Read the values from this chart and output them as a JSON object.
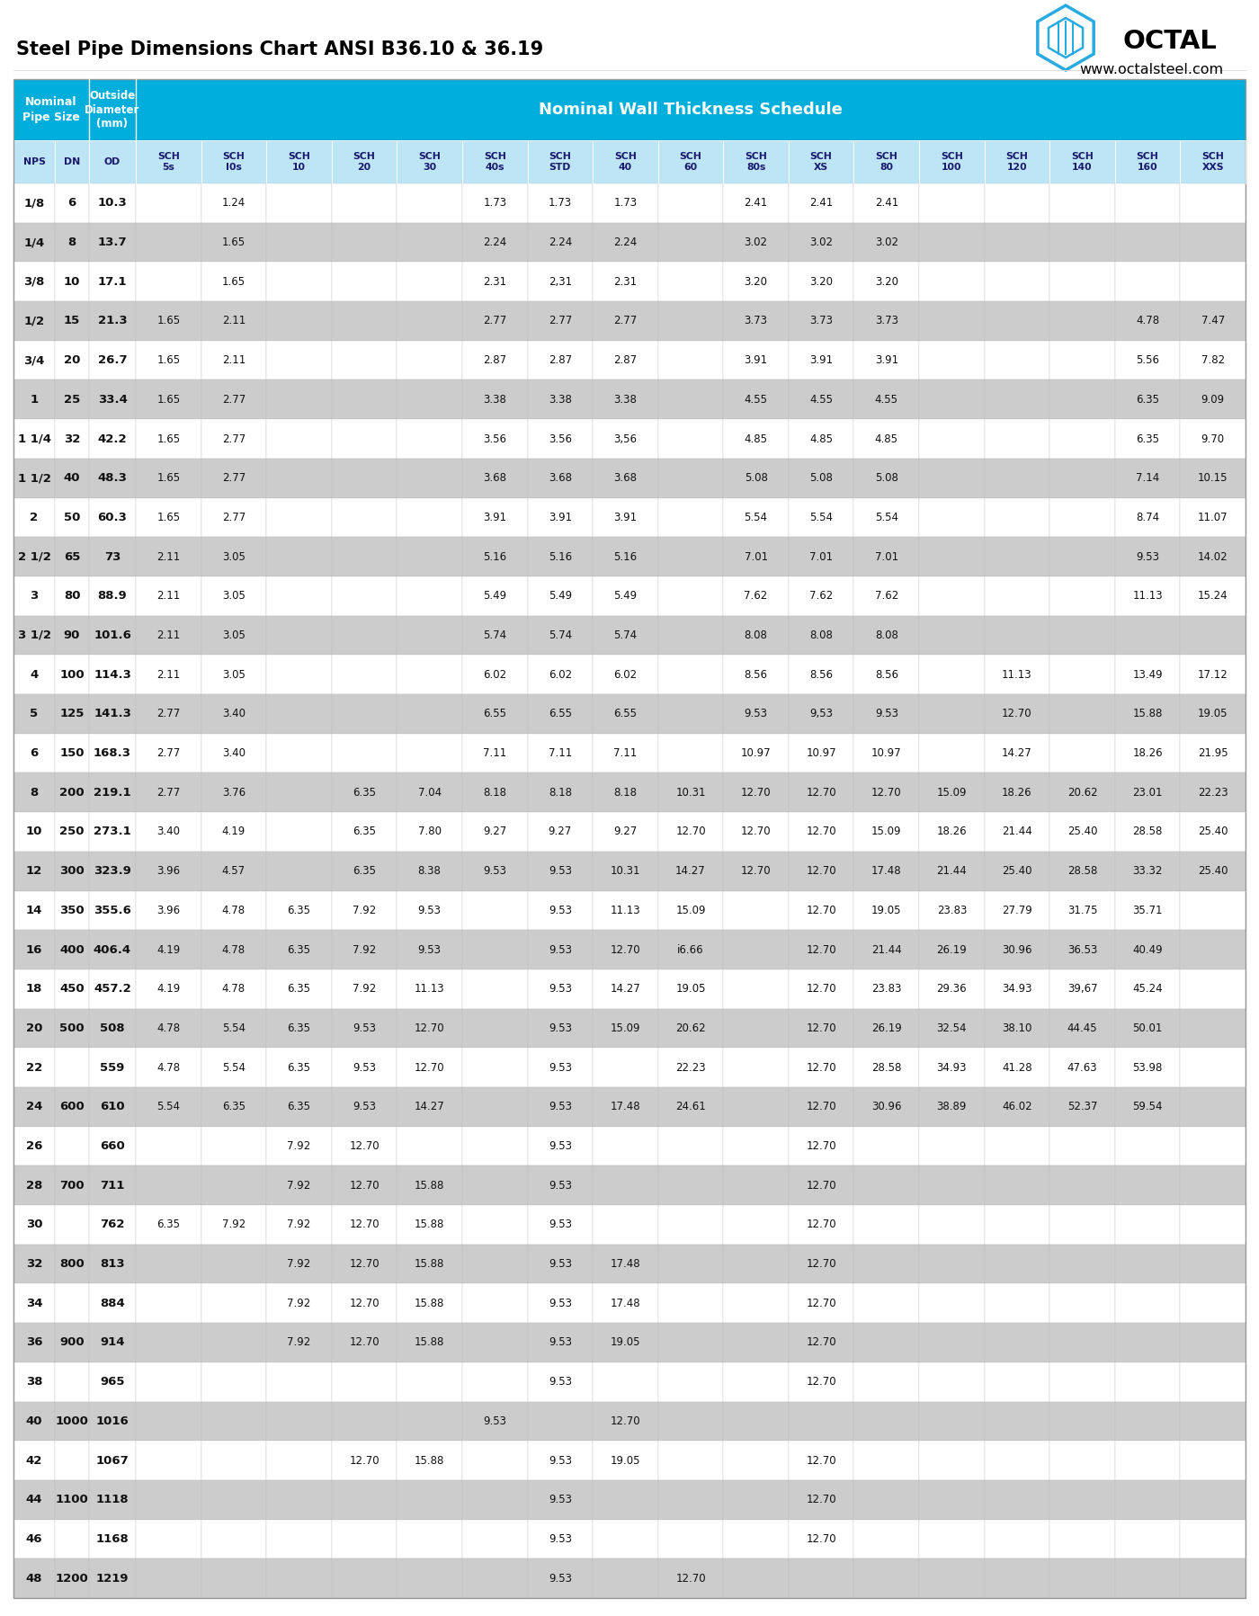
{
  "title": "Steel Pipe Dimensions Chart ANSI B36.10 & 36.19",
  "website": "www.octalsteel.com",
  "header_bg": "#00AEDB",
  "subheader_bg": "#BDE5F5",
  "row_even_bg": "#FFFFFF",
  "row_odd_bg": "#CCCCCC",
  "col_headers_line1": [
    "NPS",
    "DN",
    "OD",
    "SCH",
    "SCH",
    "SCH",
    "SCH",
    "SCH",
    "SCH",
    "SCH",
    "SCH",
    "SCH",
    "SCH",
    "SCH",
    "SCH",
    "SCH",
    "SCH",
    "SCH",
    "SCH",
    "SCH"
  ],
  "col_headers_line2": [
    "",
    "",
    "",
    "5s",
    "I0s",
    "10",
    "20",
    "30",
    "40s",
    "STD",
    "40",
    "60",
    "80s",
    "XS",
    "80",
    "100",
    "120",
    "140",
    "160",
    "XXS"
  ],
  "rows": [
    [
      "1/8",
      "6",
      "10.3",
      "",
      "1.24",
      "",
      "",
      "",
      "1.73",
      "1.73",
      "1.73",
      "",
      "2.41",
      "2.41",
      "2.41",
      "",
      "",
      "",
      "",
      ""
    ],
    [
      "1/4",
      "8",
      "13.7",
      "",
      "1.65",
      "",
      "",
      "",
      "2.24",
      "2.24",
      "2.24",
      "",
      "3.02",
      "3.02",
      "3.02",
      "",
      "",
      "",
      "",
      ""
    ],
    [
      "3/8",
      "10",
      "17.1",
      "",
      "1.65",
      "",
      "",
      "",
      "2.31",
      "2,31",
      "2.31",
      "",
      "3.20",
      "3.20",
      "3.20",
      "",
      "",
      "",
      "",
      ""
    ],
    [
      "1/2",
      "15",
      "21.3",
      "1.65",
      "2.11",
      "",
      "",
      "",
      "2.77",
      "2.77",
      "2.77",
      "",
      "3.73",
      "3.73",
      "3.73",
      "",
      "",
      "",
      "4.78",
      "7.47"
    ],
    [
      "3/4",
      "20",
      "26.7",
      "1.65",
      "2.11",
      "",
      "",
      "",
      "2.87",
      "2.87",
      "2.87",
      "",
      "3.91",
      "3.91",
      "3.91",
      "",
      "",
      "",
      "5.56",
      "7.82"
    ],
    [
      "1",
      "25",
      "33.4",
      "1.65",
      "2.77",
      "",
      "",
      "",
      "3.38",
      "3.38",
      "3.38",
      "",
      "4.55",
      "4.55",
      "4.55",
      "",
      "",
      "",
      "6.35",
      "9.09"
    ],
    [
      "1 1/4",
      "32",
      "42.2",
      "1.65",
      "2.77",
      "",
      "",
      "",
      "3.56",
      "3.56",
      "3,56",
      "",
      "4.85",
      "4.85",
      "4.85",
      "",
      "",
      "",
      "6.35",
      "9.70"
    ],
    [
      "1 1/2",
      "40",
      "48.3",
      "1.65",
      "2.77",
      "",
      "",
      "",
      "3.68",
      "3.68",
      "3.68",
      "",
      "5.08",
      "5.08",
      "5.08",
      "",
      "",
      "",
      "7.14",
      "10.15"
    ],
    [
      "2",
      "50",
      "60.3",
      "1.65",
      "2.77",
      "",
      "",
      "",
      "3.91",
      "3.91",
      "3.91",
      "",
      "5.54",
      "5.54",
      "5.54",
      "",
      "",
      "",
      "8.74",
      "11.07"
    ],
    [
      "2 1/2",
      "65",
      "73",
      "2.11",
      "3.05",
      "",
      "",
      "",
      "5.16",
      "5.16",
      "5.16",
      "",
      "7.01",
      "7.01",
      "7.01",
      "",
      "",
      "",
      "9.53",
      "14.02"
    ],
    [
      "3",
      "80",
      "88.9",
      "2.11",
      "3.05",
      "",
      "",
      "",
      "5.49",
      "5.49",
      "5.49",
      "",
      "7.62",
      "7.62",
      "7.62",
      "",
      "",
      "",
      "11.13",
      "15.24"
    ],
    [
      "3 1/2",
      "90",
      "101.6",
      "2.11",
      "3.05",
      "",
      "",
      "",
      "5.74",
      "5.74",
      "5.74",
      "",
      "8.08",
      "8.08",
      "8.08",
      "",
      "",
      "",
      "",
      ""
    ],
    [
      "4",
      "100",
      "114.3",
      "2.11",
      "3.05",
      "",
      "",
      "",
      "6.02",
      "6.02",
      "6.02",
      "",
      "8.56",
      "8.56",
      "8.56",
      "",
      "11.13",
      "",
      "13.49",
      "17.12"
    ],
    [
      "5",
      "125",
      "141.3",
      "2.77",
      "3.40",
      "",
      "",
      "",
      "6.55",
      "6.55",
      "6.55",
      "",
      "9.53",
      "9,53",
      "9.53",
      "",
      "12.70",
      "",
      "15.88",
      "19.05"
    ],
    [
      "6",
      "150",
      "168.3",
      "2.77",
      "3.40",
      "",
      "",
      "",
      "7.11",
      "7.11",
      "7.11",
      "",
      "10.97",
      "10.97",
      "10.97",
      "",
      "14.27",
      "",
      "18.26",
      "21.95"
    ],
    [
      "8",
      "200",
      "219.1",
      "2.77",
      "3.76",
      "",
      "6.35",
      "7.04",
      "8.18",
      "8.18",
      "8.18",
      "10.31",
      "12.70",
      "12.70",
      "12.70",
      "15.09",
      "18.26",
      "20.62",
      "23.01",
      "22.23"
    ],
    [
      "10",
      "250",
      "273.1",
      "3.40",
      "4.19",
      "",
      "6.35",
      "7.80",
      "9.27",
      "9.27",
      "9.27",
      "12.70",
      "12.70",
      "12.70",
      "15.09",
      "18.26",
      "21.44",
      "25.40",
      "28.58",
      "25.40"
    ],
    [
      "12",
      "300",
      "323.9",
      "3.96",
      "4.57",
      "",
      "6.35",
      "8.38",
      "9.53",
      "9.53",
      "10.31",
      "14.27",
      "12.70",
      "12.70",
      "17.48",
      "21.44",
      "25.40",
      "28.58",
      "33.32",
      "25.40"
    ],
    [
      "14",
      "350",
      "355.6",
      "3.96",
      "4.78",
      "6.35",
      "7.92",
      "9.53",
      "",
      "9.53",
      "11.13",
      "15.09",
      "",
      "12.70",
      "19.05",
      "23.83",
      "27.79",
      "31.75",
      "35.71",
      ""
    ],
    [
      "16",
      "400",
      "406.4",
      "4.19",
      "4.78",
      "6.35",
      "7.92",
      "9.53",
      "",
      "9.53",
      "12.70",
      "i6.66",
      "",
      "12.70",
      "21.44",
      "26.19",
      "30.96",
      "36.53",
      "40.49",
      ""
    ],
    [
      "18",
      "450",
      "457.2",
      "4.19",
      "4.78",
      "6.35",
      "7.92",
      "11.13",
      "",
      "9.53",
      "14.27",
      "19.05",
      "",
      "12.70",
      "23.83",
      "29.36",
      "34.93",
      "39,67",
      "45.24",
      ""
    ],
    [
      "20",
      "500",
      "508",
      "4.78",
      "5.54",
      "6.35",
      "9.53",
      "12.70",
      "",
      "9.53",
      "15.09",
      "20.62",
      "",
      "12.70",
      "26.19",
      "32.54",
      "38.10",
      "44.45",
      "50.01",
      ""
    ],
    [
      "22",
      "",
      "559",
      "4.78",
      "5.54",
      "6.35",
      "9.53",
      "12.70",
      "",
      "9.53",
      "",
      "22.23",
      "",
      "12.70",
      "28.58",
      "34.93",
      "41.28",
      "47.63",
      "53.98",
      ""
    ],
    [
      "24",
      "600",
      "610",
      "5.54",
      "6.35",
      "6.35",
      "9.53",
      "14.27",
      "",
      "9.53",
      "17.48",
      "24.61",
      "",
      "12.70",
      "30.96",
      "38.89",
      "46.02",
      "52.37",
      "59.54",
      ""
    ],
    [
      "26",
      "",
      "660",
      "",
      "",
      "7.92",
      "12.70",
      "",
      "",
      "9.53",
      "",
      "",
      "",
      "12.70",
      "",
      "",
      "",
      "",
      "",
      ""
    ],
    [
      "28",
      "700",
      "711",
      "",
      "",
      "7.92",
      "12.70",
      "15.88",
      "",
      "9.53",
      "",
      "",
      "",
      "12.70",
      "",
      "",
      "",
      "",
      "",
      ""
    ],
    [
      "30",
      "",
      "762",
      "6.35",
      "7.92",
      "7.92",
      "12.70",
      "15.88",
      "",
      "9.53",
      "",
      "",
      "",
      "12.70",
      "",
      "",
      "",
      "",
      "",
      ""
    ],
    [
      "32",
      "800",
      "813",
      "",
      "",
      "7.92",
      "12.70",
      "15.88",
      "",
      "9.53",
      "17.48",
      "",
      "",
      "12.70",
      "",
      "",
      "",
      "",
      "",
      ""
    ],
    [
      "34",
      "",
      "884",
      "",
      "",
      "7.92",
      "12.70",
      "15.88",
      "",
      "9.53",
      "17.48",
      "",
      "",
      "12.70",
      "",
      "",
      "",
      "",
      "",
      ""
    ],
    [
      "36",
      "900",
      "914",
      "",
      "",
      "7.92",
      "12.70",
      "15.88",
      "",
      "9.53",
      "19.05",
      "",
      "",
      "12.70",
      "",
      "",
      "",
      "",
      "",
      ""
    ],
    [
      "38",
      "",
      "965",
      "",
      "",
      "",
      "",
      "",
      "",
      "9.53",
      "",
      "",
      "",
      "12.70",
      "",
      "",
      "",
      "",
      "",
      ""
    ],
    [
      "40",
      "1000",
      "1016",
      "",
      "",
      "",
      "",
      "",
      "9.53",
      "",
      "12.70",
      "",
      "",
      "",
      "",
      "",
      "",
      "",
      "",
      ""
    ],
    [
      "42",
      "",
      "1067",
      "",
      "",
      "",
      "12.70",
      "15.88",
      "",
      "9.53",
      "19.05",
      "",
      "",
      "12.70",
      "",
      "",
      "",
      "",
      "",
      ""
    ],
    [
      "44",
      "1100",
      "1118",
      "",
      "",
      "",
      "",
      "",
      "",
      "9.53",
      "",
      "",
      "",
      "12.70",
      "",
      "",
      "",
      "",
      "",
      ""
    ],
    [
      "46",
      "",
      "1168",
      "",
      "",
      "",
      "",
      "",
      "",
      "9.53",
      "",
      "",
      "",
      "12.70",
      "",
      "",
      "",
      "",
      "",
      ""
    ],
    [
      "48",
      "1200",
      "1219",
      "",
      "",
      "",
      "",
      "",
      "",
      "9.53",
      "",
      "12.70",
      "",
      "",
      "",
      "",
      "",
      "",
      "",
      ""
    ]
  ]
}
